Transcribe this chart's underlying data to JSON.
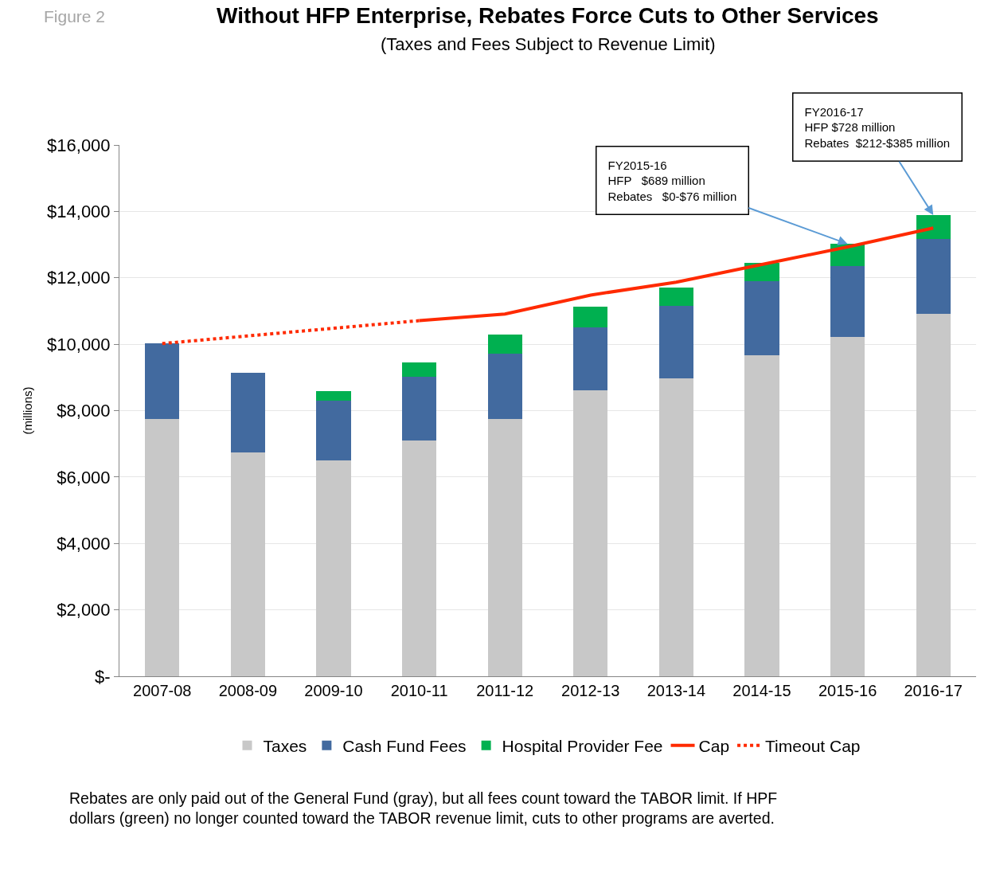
{
  "chart_data": {
    "type": "bar",
    "title": "Without HFP Enterprise, Rebates Force Cuts to Other Services",
    "subtitle": "(Taxes and Fees Subject to Revenue Limit)",
    "ylabel": "(millions)",
    "categories": [
      "2007-08",
      "2008-09",
      "2009-10",
      "2010-11",
      "2011-12",
      "2012-13",
      "2013-14",
      "2014-15",
      "2015-16",
      "2016-17"
    ],
    "stacked": true,
    "series": [
      {
        "name": "Taxes",
        "color": "#c8c8c8",
        "values": [
          7760,
          6750,
          6490,
          7090,
          7740,
          8600,
          8980,
          9660,
          10230,
          10910
        ]
      },
      {
        "name": "Cash Fund Fees",
        "color": "#426a9f",
        "values": [
          2260,
          2380,
          1800,
          1920,
          1970,
          1900,
          2170,
          2230,
          2120,
          2260
        ]
      },
      {
        "name": "Hospital Provider Fee",
        "color": "#00b050",
        "values": [
          null,
          null,
          290,
          430,
          570,
          620,
          550,
          550,
          670,
          720
        ]
      },
      {
        "name": "Cap",
        "type": "line",
        "color": "#ff2a00",
        "line_style": "solid",
        "values": [
          null,
          null,
          null,
          10710,
          10910,
          11480,
          11870,
          12400,
          12930,
          13500
        ]
      },
      {
        "name": "Timeout Cap",
        "type": "line",
        "color": "#ff2a00",
        "line_style": "dotted",
        "values": [
          10020,
          10250,
          10480,
          10710,
          null,
          null,
          null,
          null,
          null,
          null
        ]
      }
    ],
    "ylim": [
      0,
      16000
    ],
    "yticks": [
      {
        "value": 0,
        "label": "$-"
      },
      {
        "value": 2000,
        "label": "$2,000"
      },
      {
        "value": 4000,
        "label": "$4,000"
      },
      {
        "value": 6000,
        "label": "$6,000"
      },
      {
        "value": 8000,
        "label": "$8,000"
      },
      {
        "value": 10000,
        "label": "$10,000"
      },
      {
        "value": 12000,
        "label": "$12,000"
      },
      {
        "value": 14000,
        "label": "$14,000"
      },
      {
        "value": 16000,
        "label": "$16,000"
      }
    ],
    "grid": "y",
    "legend": "bottom",
    "marker": "none",
    "annotations": [
      "Figure 2",
      {
        "text": "FY2015-16\nHFP   $689 million\nRebates   $0-$76 million",
        "x": "2015-16",
        "y": 13020
      },
      {
        "text": "FY2016-17\nHFP $728 million\nRebates  $212-$385 million",
        "x": "2016-17",
        "y": 13890
      },
      "Rebates are only paid out of the General Fund (gray), but all fees count toward the TABOR limit. If HPF\ndollars (green) no longer counted toward the TABOR revenue limit, cuts to other programs are averted."
    ]
  }
}
